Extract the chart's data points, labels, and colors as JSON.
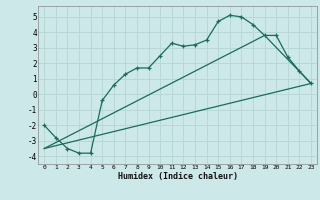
{
  "xlabel": "Humidex (Indice chaleur)",
  "background_color": "#cce8e8",
  "grid_color": "#b8d8d8",
  "line_color": "#1a6b5a",
  "xlim": [
    -0.5,
    23.5
  ],
  "ylim": [
    -4.5,
    5.7
  ],
  "yticks": [
    -4,
    -3,
    -2,
    -1,
    0,
    1,
    2,
    3,
    4,
    5
  ],
  "xticks": [
    0,
    1,
    2,
    3,
    4,
    5,
    6,
    7,
    8,
    9,
    10,
    11,
    12,
    13,
    14,
    15,
    16,
    17,
    18,
    19,
    20,
    21,
    22,
    23
  ],
  "curve1_x": [
    0,
    1,
    2,
    3,
    4,
    5,
    6,
    7,
    8,
    9,
    10,
    11,
    12,
    13,
    14,
    15,
    16,
    17,
    18,
    19,
    20,
    21,
    22,
    23
  ],
  "curve1_y": [
    -2.0,
    -2.8,
    -3.5,
    -3.8,
    -3.8,
    -0.4,
    0.6,
    1.3,
    1.7,
    1.7,
    2.5,
    3.3,
    3.1,
    3.2,
    3.5,
    4.7,
    5.1,
    5.0,
    4.5,
    3.8,
    3.8,
    2.4,
    1.5,
    0.7
  ],
  "line1_x": [
    0,
    23
  ],
  "line1_y": [
    -3.5,
    0.7
  ],
  "line2_x": [
    0,
    19,
    23
  ],
  "line2_y": [
    -3.5,
    3.8,
    0.7
  ]
}
